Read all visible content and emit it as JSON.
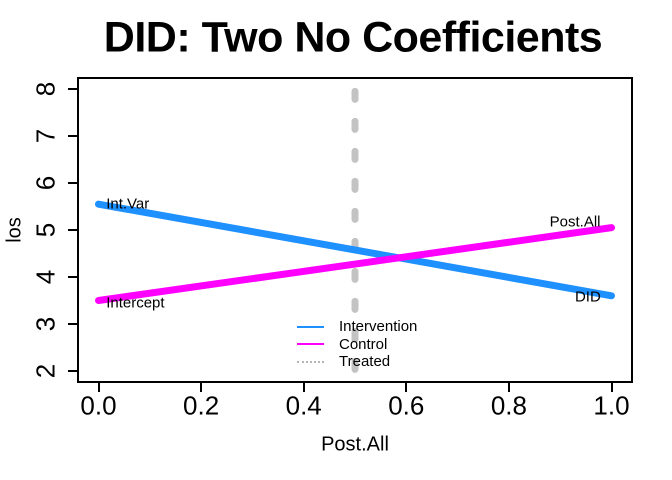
{
  "chart_data": {
    "type": "line",
    "title": "DID: Two No Coefficients",
    "xlabel": "Post.All",
    "ylabel": "los",
    "xlim": [
      0,
      1
    ],
    "ylim": [
      2,
      8
    ],
    "grid": false,
    "x_ticks": [
      0.0,
      0.2,
      0.4,
      0.6,
      0.8,
      1.0
    ],
    "x_tick_labels": [
      "0.0",
      "0.2",
      "0.4",
      "0.6",
      "0.8",
      "1.0"
    ],
    "y_ticks": [
      2,
      3,
      4,
      5,
      6,
      7,
      8
    ],
    "y_tick_labels": [
      "2",
      "3",
      "4",
      "5",
      "6",
      "7",
      "8"
    ],
    "series": [
      {
        "name": "Intervention",
        "kind": "line",
        "color": "#1E90FF",
        "linestyle": "solid",
        "linewidth": 7,
        "x": [
          0,
          1
        ],
        "y": [
          5.55,
          3.6
        ]
      },
      {
        "name": "Control",
        "kind": "line",
        "color": "#FF00FF",
        "linestyle": "solid",
        "linewidth": 7,
        "x": [
          0,
          1
        ],
        "y": [
          3.5,
          5.05
        ]
      },
      {
        "name": "Treated",
        "kind": "vline",
        "color": "#C3C3C3",
        "linestyle": "dashed",
        "linewidth": 7,
        "x": 0.5,
        "y_from": 1.7,
        "y_to": 7.95
      }
    ],
    "annotations": [
      {
        "text": "Int.Var",
        "x": 0.015,
        "y": 5.55,
        "align": "left"
      },
      {
        "text": "Intercept",
        "x": 0.015,
        "y": 3.45,
        "align": "left"
      },
      {
        "text": "Post.All",
        "x": 0.929,
        "y": 5.17,
        "align": "center"
      },
      {
        "text": "DID",
        "x": 0.954,
        "y": 3.57,
        "align": "center"
      }
    ],
    "legend": {
      "position": "bottom-center",
      "frame": false,
      "entries": [
        {
          "label": "Intervention",
          "color": "#1E90FF",
          "style": "solid"
        },
        {
          "label": "Control",
          "color": "#FF00FF",
          "style": "solid"
        },
        {
          "label": "Treated",
          "color": "#B5B5B5",
          "style": "dotted"
        }
      ]
    }
  }
}
